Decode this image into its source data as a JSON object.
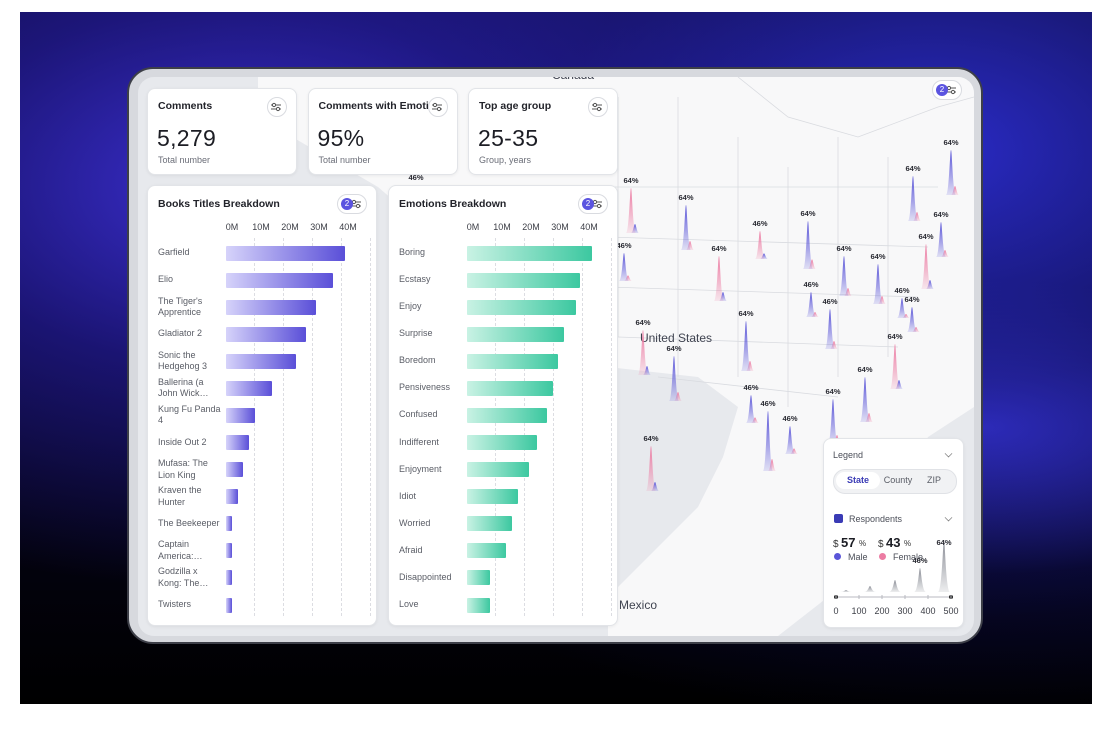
{
  "header_badge": "2",
  "cards": [
    {
      "title": "Comments",
      "value": "5,279",
      "subtitle": "Total number"
    },
    {
      "title": "Comments with Emotio",
      "value": "95%",
      "subtitle": "Total number"
    },
    {
      "title": "Top age group",
      "value": "25-35",
      "subtitle": "Group, years"
    }
  ],
  "chart_data": [
    {
      "type": "bar",
      "orientation": "horizontal",
      "title": "Books Titles Breakdown",
      "badge": "2",
      "categories": [
        "Garfield",
        "Elio",
        "The Tiger's Apprentice",
        "Gladiator 2",
        "Sonic the Hedgehog 3",
        "Ballerina (a John Wick…",
        "Kung Fu Panda 4",
        "Inside Out 2",
        "Mufasa: The Lion King",
        "Kraven the Hunter",
        "The Beekeeper",
        "Captain America: Brav…",
        "Godzilla x Kong: The Ne…",
        "Twisters"
      ],
      "values": [
        41,
        37,
        31,
        27.5,
        24,
        16,
        10,
        8,
        6,
        4,
        2,
        2,
        2,
        2
      ],
      "color": "#5a4fd8",
      "color_light": "#d6d3fa",
      "xlim": [
        0,
        44
      ],
      "xticks": [
        {
          "value": 0,
          "label": "0M"
        },
        {
          "value": 10,
          "label": "10M"
        },
        {
          "value": 20,
          "label": "20M"
        },
        {
          "value": 30,
          "label": "30M"
        },
        {
          "value": 40,
          "label": "40M"
        }
      ],
      "grid": true
    },
    {
      "type": "bar",
      "orientation": "horizontal",
      "title": "Emotions Breakdown",
      "badge": "2",
      "categories": [
        "Boring",
        "Ecstasy",
        "Enjoy",
        "Surprise",
        "Boredom",
        "Pensiveness",
        "Confused",
        "Indifferent",
        "Enjoyment",
        "Idiot",
        "Worried",
        "Afraid",
        "Disappointed",
        "Love"
      ],
      "values": [
        43,
        39,
        37.5,
        33.5,
        31.5,
        29.5,
        27.5,
        24,
        21.5,
        17.5,
        15.5,
        13.5,
        8,
        8
      ],
      "color": "#3cc8a0",
      "color_light": "#c9f2e4",
      "xlim": [
        0,
        44
      ],
      "xticks": [
        {
          "value": 0,
          "label": "0M"
        },
        {
          "value": 10,
          "label": "10M"
        },
        {
          "value": 20,
          "label": "20M"
        },
        {
          "value": 30,
          "label": "30M"
        },
        {
          "value": 40,
          "label": "40M"
        }
      ],
      "grid": true
    }
  ],
  "map": {
    "canada": "Canada",
    "usa": "United States",
    "mexico": "Mexico",
    "spike_labels": [
      "64%",
      "64%",
      "64%",
      "64%",
      "46%",
      "64%",
      "64%",
      "64%",
      "64%",
      "64%",
      "64%",
      "46%",
      "46%",
      "46%",
      "64%",
      "64%",
      "64%",
      "46%",
      "46%",
      "64%",
      "64%",
      "64%",
      "46%",
      "64%",
      "46%",
      "46%",
      "64%"
    ]
  },
  "legend": {
    "title": "Legend",
    "tabs": [
      "State",
      "County",
      "ZIP"
    ],
    "active_tab": 0,
    "layer": "Respondents",
    "male": {
      "prefix": "$",
      "value": "57",
      "suffix": "%",
      "label": "Male",
      "color": "#5a55d8"
    },
    "female": {
      "prefix": "$",
      "value": "43",
      "suffix": "%",
      "label": "Female",
      "color": "#ec7ca3"
    },
    "spike_labels": [
      "64%",
      "46%"
    ],
    "axis": [
      0,
      100,
      200,
      300,
      400,
      500
    ]
  }
}
